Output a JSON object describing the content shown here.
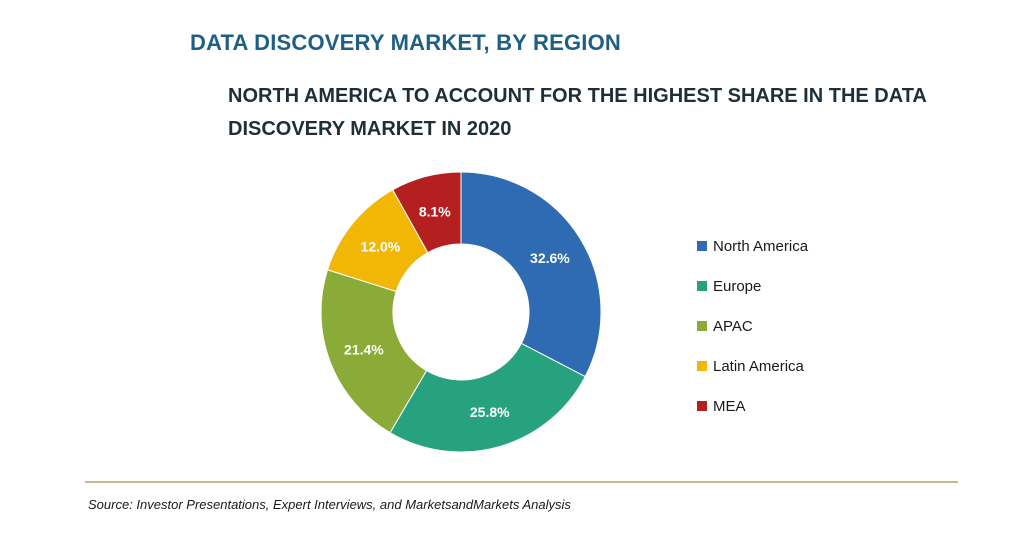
{
  "title": "DATA DISCOVERY MARKET, BY REGION",
  "subtitle": "NORTH AMERICA TO ACCOUNT FOR THE HIGHEST SHARE IN THE DATA DISCOVERY MARKET IN 2020",
  "source": "Source: Investor Presentations, Expert Interviews, and MarketsandMarkets Analysis",
  "chart_data": {
    "type": "pie",
    "donut": true,
    "categories": [
      "North America",
      "Europe",
      "APAC",
      "Latin America",
      "MEA"
    ],
    "values": [
      32.6,
      25.8,
      21.4,
      12.0,
      8.1
    ],
    "labels": [
      "32.6%",
      "25.8%",
      "21.4%",
      "12.0%",
      "8.1%"
    ],
    "colors": [
      "#2e6bb3",
      "#26a37e",
      "#8bab38",
      "#f2b705",
      "#b3201f"
    ],
    "legend_position": "right"
  }
}
